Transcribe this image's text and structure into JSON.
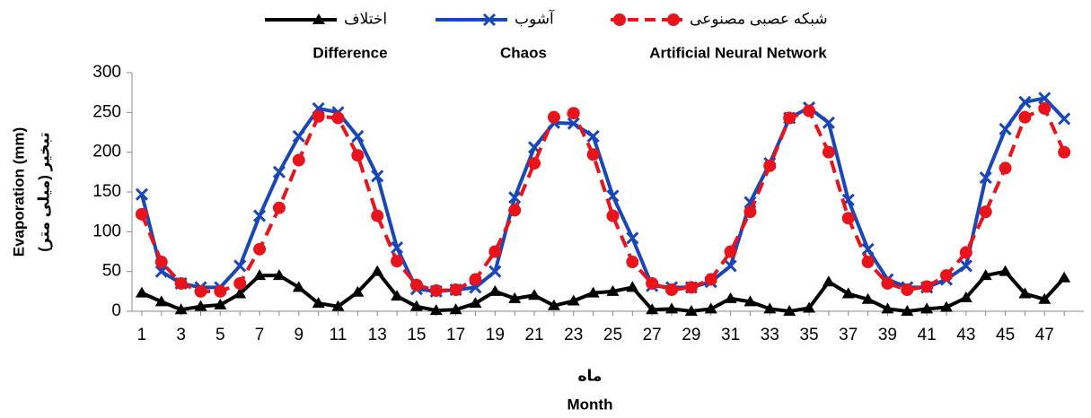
{
  "chart_data": {
    "type": "line",
    "x_label": "Month",
    "x_label_fa": "ماه",
    "y_label": "Evaporation (mm)",
    "y_label_fa": "تبخیر (میلی متر)",
    "x": [
      1,
      2,
      3,
      4,
      5,
      6,
      7,
      8,
      9,
      10,
      11,
      12,
      13,
      14,
      15,
      16,
      17,
      18,
      19,
      20,
      21,
      22,
      23,
      24,
      25,
      26,
      27,
      28,
      29,
      30,
      31,
      32,
      33,
      34,
      35,
      36,
      37,
      38,
      39,
      40,
      41,
      42,
      43,
      44,
      45,
      46,
      47,
      48
    ],
    "xlim": [
      0.5,
      49
    ],
    "xticks": [
      1,
      3,
      5,
      7,
      9,
      11,
      13,
      15,
      17,
      19,
      21,
      23,
      25,
      27,
      29,
      31,
      33,
      35,
      37,
      39,
      41,
      43,
      45,
      47
    ],
    "ylim": [
      0,
      300
    ],
    "yticks": [
      0,
      50,
      100,
      150,
      200,
      250,
      300
    ],
    "series": [
      {
        "name": "اختلاف",
        "name_en": "Difference",
        "color": "#000000",
        "marker": "triangle",
        "dash": false,
        "values": [
          23,
          12,
          2,
          6,
          8,
          22,
          45,
          45,
          30,
          10,
          6,
          24,
          50,
          19,
          6,
          1,
          2,
          10,
          25,
          16,
          20,
          7,
          13,
          23,
          25,
          30,
          2,
          3,
          0,
          3,
          16,
          12,
          3,
          0,
          4,
          37,
          22,
          15,
          3,
          0,
          3,
          5,
          17,
          45,
          50,
          22,
          15,
          42
        ]
      },
      {
        "name": "آشوب",
        "name_en": "Chaos",
        "color": "#1a47b8",
        "marker": "x",
        "dash": false,
        "values": [
          147,
          50,
          35,
          30,
          30,
          57,
          120,
          175,
          220,
          255,
          250,
          220,
          170,
          80,
          28,
          25,
          27,
          30,
          50,
          143,
          206,
          237,
          236,
          220,
          145,
          92,
          32,
          30,
          30,
          37,
          57,
          137,
          186,
          243,
          256,
          237,
          140,
          78,
          40,
          30,
          30,
          40,
          57,
          168,
          229,
          263,
          268,
          242
        ]
      },
      {
        "name": "شبکه عصبی مصنوعی",
        "name_en": "Artificial Neural Network",
        "color": "#e8131b",
        "marker": "circle",
        "dash": true,
        "values": [
          122,
          62,
          35,
          25,
          25,
          35,
          78,
          130,
          190,
          245,
          243,
          196,
          120,
          63,
          33,
          26,
          27,
          40,
          75,
          127,
          186,
          244,
          249,
          197,
          120,
          62,
          35,
          27,
          30,
          40,
          75,
          125,
          183,
          243,
          252,
          200,
          117,
          62,
          35,
          27,
          31,
          45,
          74,
          125,
          180,
          244,
          255,
          200
        ]
      }
    ]
  }
}
